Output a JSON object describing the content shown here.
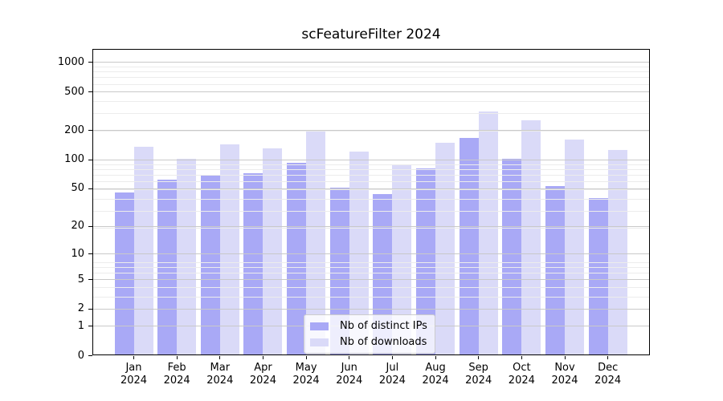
{
  "chart_data": {
    "type": "bar",
    "title": "scFeatureFilter 2024",
    "categories": [
      "Jan",
      "Feb",
      "Mar",
      "Apr",
      "May",
      "Jun",
      "Jul",
      "Aug",
      "Sep",
      "Oct",
      "Nov",
      "Dec"
    ],
    "category_year": "2024",
    "series": [
      {
        "name": "Nb of distinct IPs",
        "color": "#a9a9f6",
        "values": [
          45,
          62,
          68,
          72,
          92,
          51,
          44,
          80,
          167,
          102,
          53,
          40
        ]
      },
      {
        "name": "Nb of downloads",
        "color": "#dadaf8",
        "values": [
          136,
          102,
          142,
          131,
          193,
          120,
          89,
          150,
          310,
          255,
          160,
          126
        ]
      }
    ],
    "yscale": "log1p",
    "ylim": [
      0,
      1365
    ],
    "y_ticks": [
      0,
      1,
      2,
      5,
      10,
      20,
      50,
      100,
      200,
      500,
      1000
    ],
    "grid": true,
    "grid_above_bars": true,
    "legend_position": "inside-bottom-center",
    "xlabel": "",
    "ylabel": ""
  },
  "legend": {
    "items": [
      "Nb of distinct IPs",
      "Nb of downloads"
    ]
  },
  "colors": {
    "grid_major": "#c9c9c9",
    "grid_minor": "#ececec",
    "spine": "#000000",
    "text": "#000000",
    "legend_border": "#cccccc",
    "legend_background": "rgba(255,255,255,0.8)",
    "background": "#ffffff"
  }
}
